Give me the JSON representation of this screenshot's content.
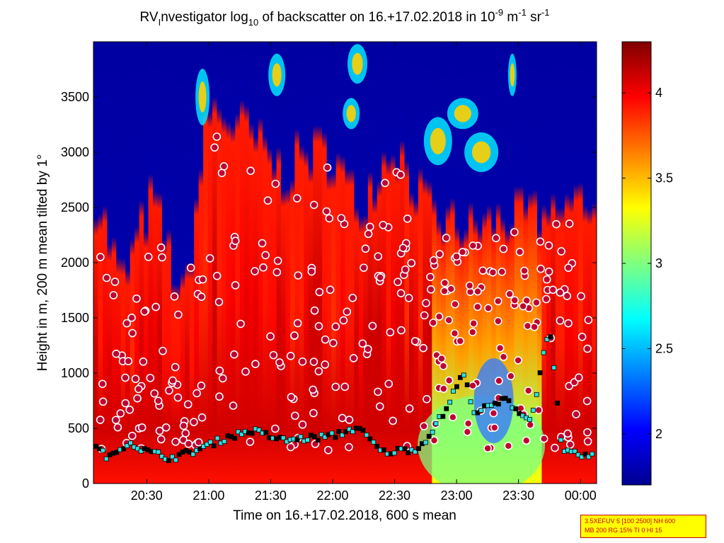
{
  "chart_data": {
    "type": "heatmap",
    "title": {
      "prefix": "RV",
      "prefix_sub": "I",
      "main": "nvestigator log",
      "main_sub": "10",
      "rest": " of backscatter on 16.+17.02.2018 in 10",
      "exp1": "-9",
      "unit": " m",
      "exp2": "-1",
      "unit2": " sr",
      "exp3": "-1"
    },
    "xlabel": "Time on 16.+17.02.2018, 600 s mean",
    "ylabel": "Height in m, 200 m mean tilted by 1°",
    "x_range_hours": [
      20.07,
      24.13
    ],
    "x_ticks": [
      {
        "label": "20:30",
        "hour": 20.5
      },
      {
        "label": "21:00",
        "hour": 21.0
      },
      {
        "label": "21:30",
        "hour": 21.5
      },
      {
        "label": "22:00",
        "hour": 22.0
      },
      {
        "label": "22:30",
        "hour": 22.5
      },
      {
        "label": "23:00",
        "hour": 23.0
      },
      {
        "label": "23:30",
        "hour": 23.5
      },
      {
        "label": "00:00",
        "hour": 24.0
      }
    ],
    "y_range": [
      0,
      4000
    ],
    "y_ticks": [
      "0",
      "500",
      "1000",
      "1500",
      "2000",
      "2500",
      "3000",
      "3500"
    ],
    "colorbar": {
      "range": [
        1.7,
        4.3
      ],
      "ticks": [
        "2",
        "2.5",
        "3",
        "3.5",
        "4"
      ],
      "colormap": "jet"
    },
    "low_cloud_height_m": [
      {
        "hour": 20.1,
        "h": 320
      },
      {
        "hour": 20.2,
        "h": 230
      },
      {
        "hour": 20.35,
        "h": 380
      },
      {
        "hour": 20.5,
        "h": 290
      },
      {
        "hour": 20.7,
        "h": 230
      },
      {
        "hour": 20.9,
        "h": 300
      },
      {
        "hour": 21.15,
        "h": 420
      },
      {
        "hour": 21.35,
        "h": 480
      },
      {
        "hour": 21.6,
        "h": 390
      },
      {
        "hour": 21.8,
        "h": 410
      },
      {
        "hour": 22.0,
        "h": 430
      },
      {
        "hour": 22.2,
        "h": 510
      },
      {
        "hour": 22.4,
        "h": 280
      },
      {
        "hour": 22.7,
        "h": 320
      },
      {
        "hour": 22.9,
        "h": 640
      },
      {
        "hour": 23.05,
        "h": 1000
      },
      {
        "hour": 23.15,
        "h": 640
      },
      {
        "hour": 23.4,
        "h": 760
      },
      {
        "hour": 23.6,
        "h": 560
      },
      {
        "hour": 23.75,
        "h": 1450
      },
      {
        "hour": 23.85,
        "h": 280
      },
      {
        "hour": 24.05,
        "h": 250
      }
    ],
    "upper_layer_top_m": [
      {
        "hour": 20.1,
        "h": 2500
      },
      {
        "hour": 20.3,
        "h": 1700
      },
      {
        "hour": 20.55,
        "h": 2500
      },
      {
        "hour": 20.8,
        "h": 1500
      },
      {
        "hour": 21.0,
        "h": 3300
      },
      {
        "hour": 21.3,
        "h": 3100
      },
      {
        "hour": 21.6,
        "h": 2700
      },
      {
        "hour": 21.8,
        "h": 2900
      },
      {
        "hour": 22.0,
        "h": 2900
      },
      {
        "hour": 22.2,
        "h": 2400
      },
      {
        "hour": 22.5,
        "h": 3000
      },
      {
        "hour": 22.8,
        "h": 2300
      },
      {
        "hour": 23.1,
        "h": 2200
      },
      {
        "hour": 23.4,
        "h": 2300
      },
      {
        "hour": 23.7,
        "h": 2300
      },
      {
        "hour": 24.1,
        "h": 2500
      }
    ]
  },
  "stamp": {
    "line1": "3.5XEFUV 5 [100 2500] NH 600",
    "line2": "MB 200 RG 15% TI 0 HI 15"
  },
  "colors": {
    "low": "#00008f",
    "high": "#800000"
  }
}
